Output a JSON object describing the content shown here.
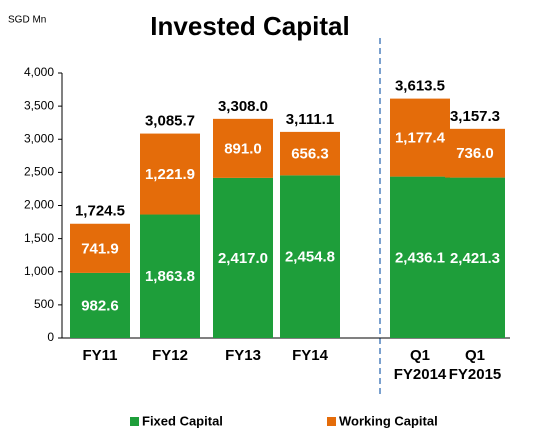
{
  "chart_data": {
    "type": "stacked_bar",
    "title": "Invested Capital",
    "unit_label": "SGD Mn",
    "categories": [
      "FY11",
      "FY12",
      "FY13",
      "FY14",
      "Q1 FY2014",
      "Q1 FY2015"
    ],
    "series": [
      {
        "name": "Fixed Capital",
        "color": "#1e9e3a",
        "values": [
          982.6,
          1863.8,
          2417.0,
          2454.8,
          2436.1,
          2421.3
        ],
        "value_labels": [
          "982.6",
          "1,863.8",
          "2,417.0",
          "2,454.8",
          "2,436.1",
          "2,421.3"
        ]
      },
      {
        "name": "Working Capital",
        "color": "#e46c0a",
        "values": [
          741.9,
          1221.9,
          891.0,
          656.3,
          1177.4,
          736.0
        ],
        "value_labels": [
          "741.9",
          "1,221.9",
          "891.0",
          "656.3",
          "1,177.4",
          "736.0"
        ]
      }
    ],
    "totals": [
      1724.5,
      3085.7,
      3308.0,
      3111.1,
      3613.5,
      3157.3
    ],
    "total_labels": [
      "1,724.5",
      "3,085.7",
      "3,308.0",
      "3,111.1",
      "3,613.5",
      "3,157.3"
    ],
    "ylim": [
      0,
      4000
    ],
    "yticks": [
      0,
      500,
      {
        "value": 1000,
        "label": "1,000"
      },
      {
        "value": 1500,
        "label": "1,500"
      },
      {
        "value": 2000,
        "label": "2,000"
      },
      {
        "value": 2500,
        "label": "2,500"
      },
      {
        "value": 3000,
        "label": "3,000"
      },
      {
        "value": 3500,
        "label": "3,500"
      },
      {
        "value": 4000,
        "label": "4,000"
      }
    ],
    "legend": "bottom"
  }
}
